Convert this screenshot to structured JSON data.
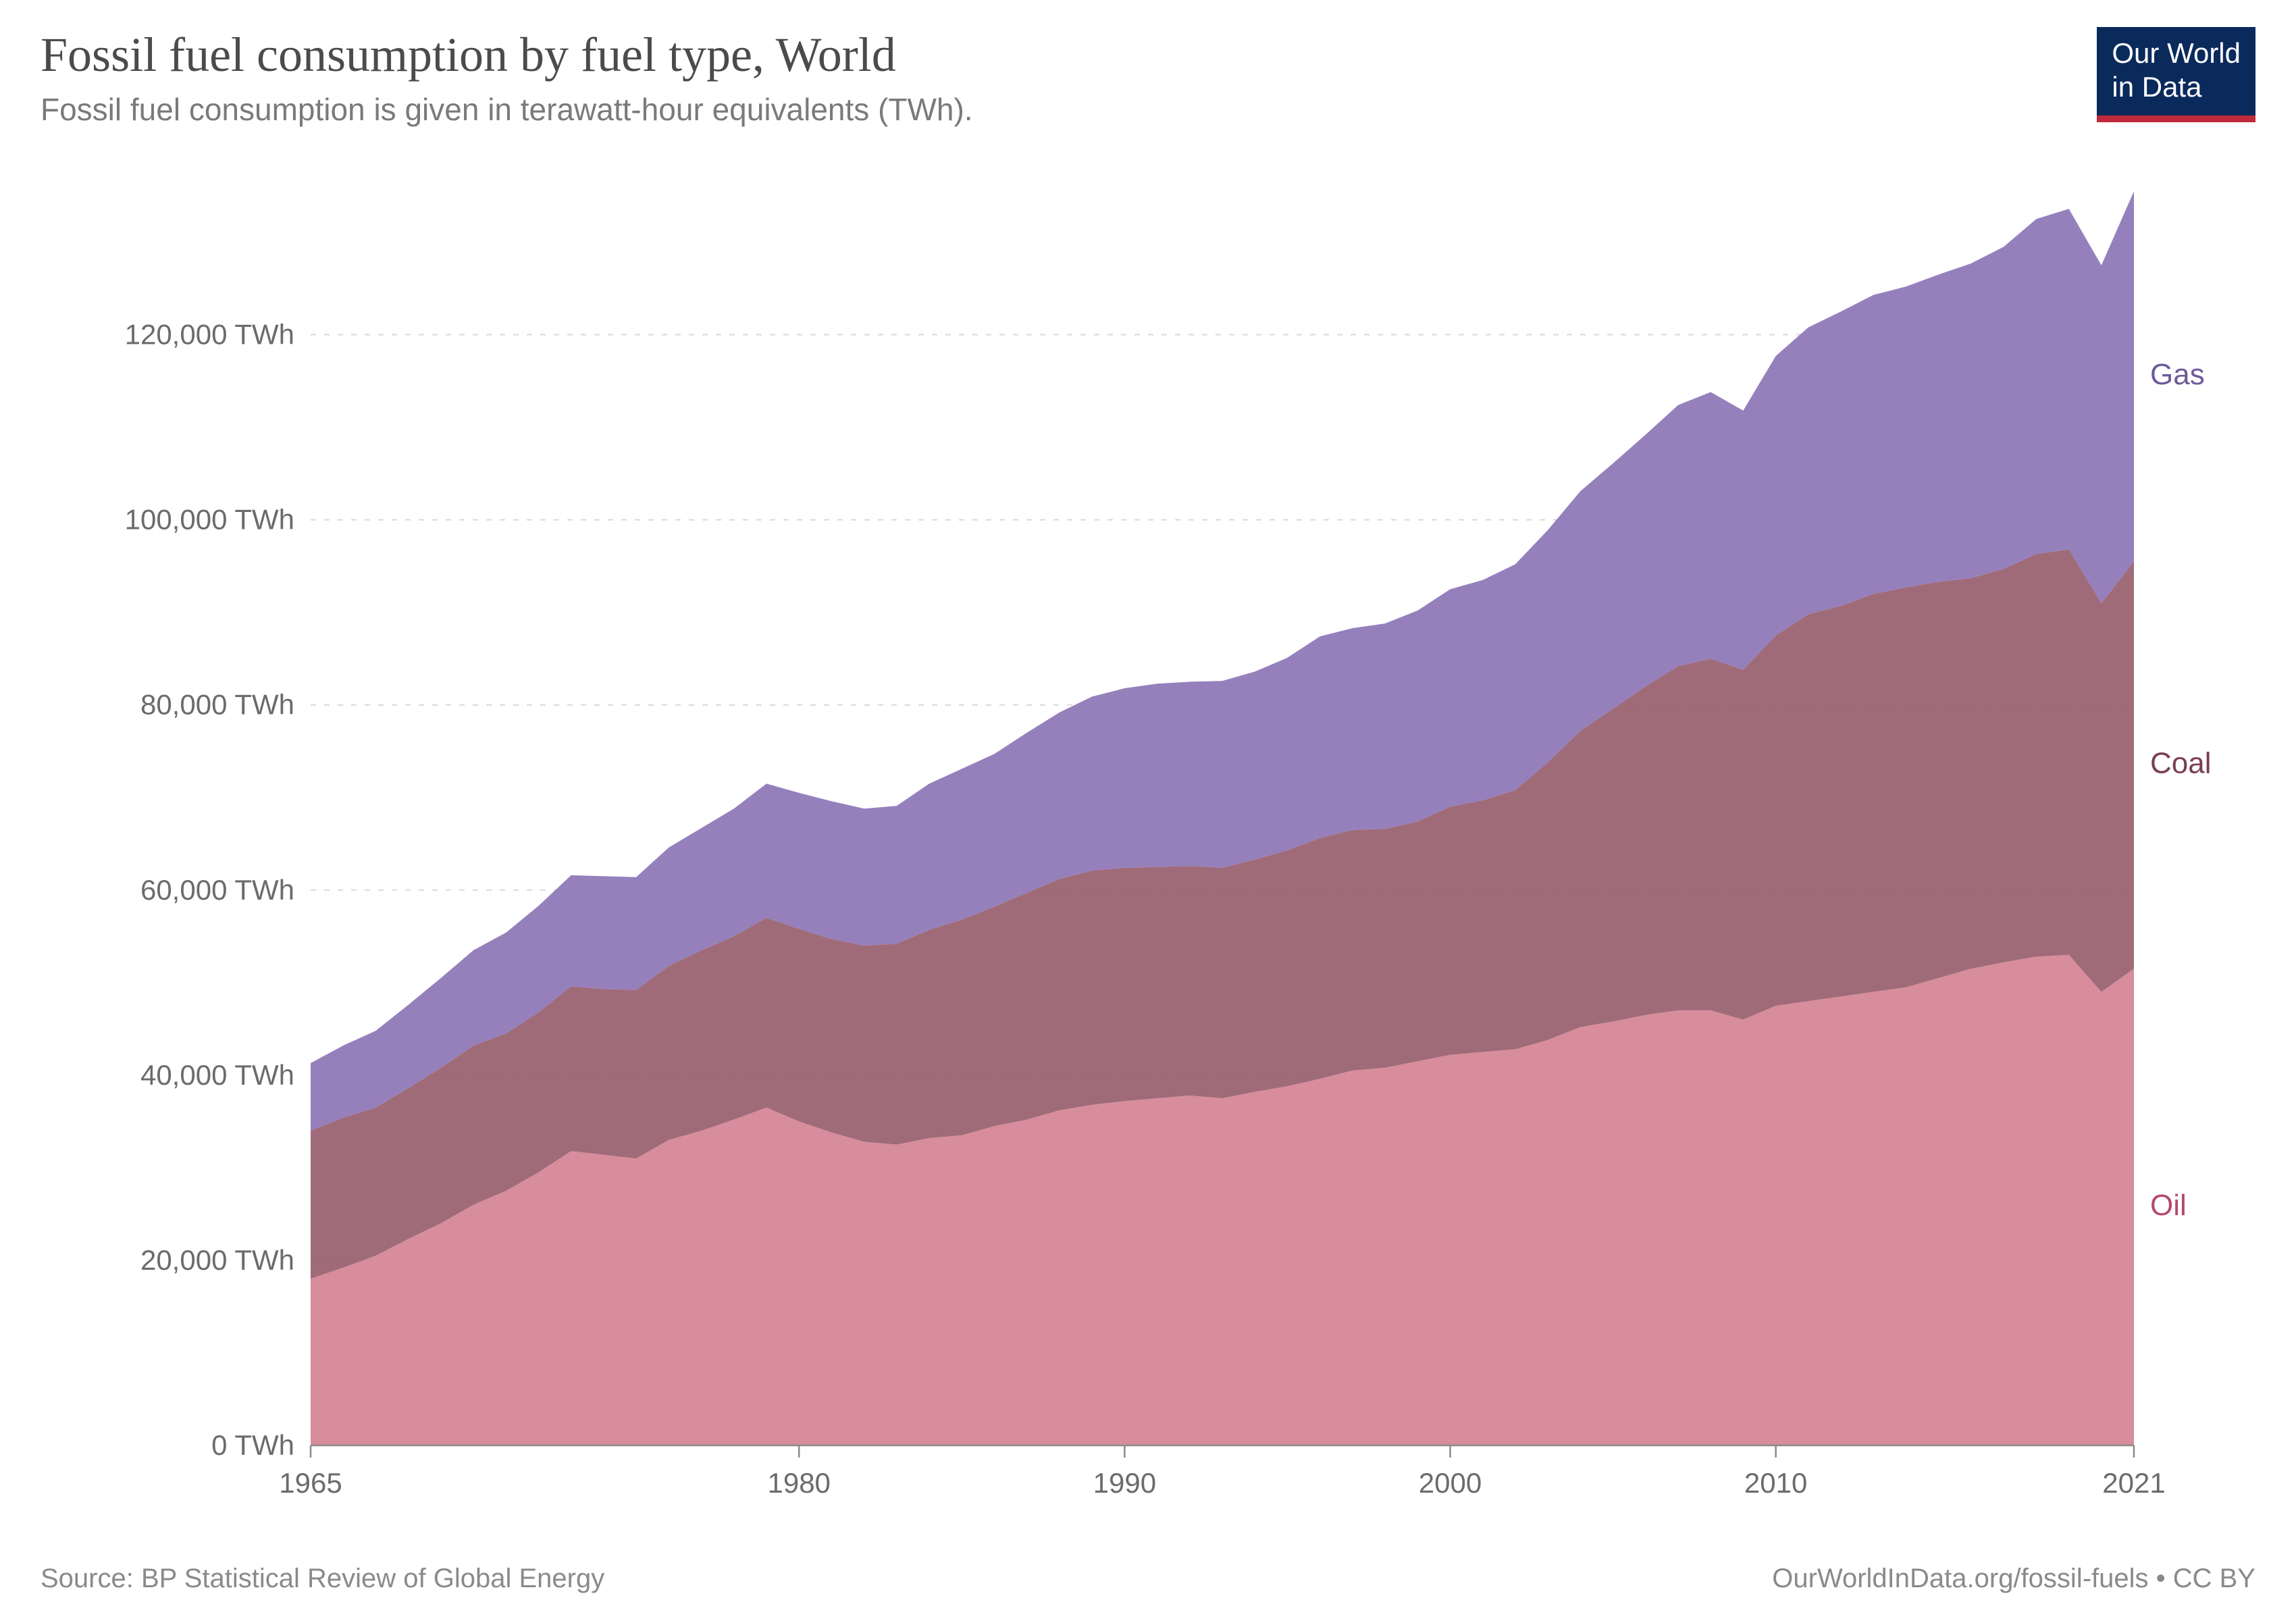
{
  "header": {
    "title": "Fossil fuel consumption by fuel type, World",
    "subtitle": "Fossil fuel consumption is given in terawatt-hour equivalents (TWh)."
  },
  "logo": {
    "line1": "Our World",
    "line2": "in Data",
    "bg_color": "#0a2a5c",
    "accent_color": "#c0283b",
    "text_color": "#ffffff"
  },
  "footer": {
    "source": "Source: BP Statistical Review of Global Energy",
    "attribution": "OurWorldInData.org/fossil-fuels • CC BY"
  },
  "chart": {
    "type": "stacked-area",
    "background_color": "#ffffff",
    "grid_color": "#d9d9d9",
    "axis_color": "#8a8a8a",
    "tick_label_color": "#6b6b6b",
    "tick_fontsize": 42,
    "xlim": [
      1965,
      2021
    ],
    "ylim": [
      0,
      135000
    ],
    "yticks": [
      0,
      20000,
      40000,
      60000,
      80000,
      100000,
      120000
    ],
    "ytick_labels": [
      "0 TWh",
      "20,000 TWh",
      "40,000 TWh",
      "60,000 TWh",
      "80,000 TWh",
      "100,000 TWh",
      "120,000 TWh"
    ],
    "xticks": [
      1965,
      1980,
      1990,
      2000,
      2010,
      2021
    ],
    "xtick_labels": [
      "1965",
      "1980",
      "1990",
      "2000",
      "2010",
      "2021"
    ],
    "years": [
      1965,
      1966,
      1967,
      1968,
      1969,
      1970,
      1971,
      1972,
      1973,
      1974,
      1975,
      1976,
      1977,
      1978,
      1979,
      1980,
      1981,
      1982,
      1983,
      1984,
      1985,
      1986,
      1987,
      1988,
      1989,
      1990,
      1991,
      1992,
      1993,
      1994,
      1995,
      1996,
      1997,
      1998,
      1999,
      2000,
      2001,
      2002,
      2003,
      2004,
      2005,
      2006,
      2007,
      2008,
      2009,
      2010,
      2011,
      2012,
      2013,
      2014,
      2015,
      2016,
      2017,
      2018,
      2019,
      2020,
      2021
    ],
    "series": [
      {
        "name": "Oil",
        "label": "Oil",
        "color": "#d58797",
        "label_color": "#b5486a",
        "values": [
          18000,
          19200,
          20500,
          22300,
          24000,
          26000,
          27500,
          29500,
          31800,
          31400,
          31000,
          33000,
          34000,
          35200,
          36500,
          35000,
          33800,
          32800,
          32500,
          33200,
          33500,
          34500,
          35200,
          36200,
          36800,
          37200,
          37500,
          37800,
          37500,
          38200,
          38800,
          39600,
          40500,
          40800,
          41500,
          42200,
          42500,
          42800,
          43800,
          45200,
          45800,
          46500,
          47000,
          47000,
          46000,
          47500,
          48000,
          48500,
          49000,
          49500,
          50500,
          51500,
          52200,
          52800,
          53000,
          49000,
          51500
        ]
      },
      {
        "name": "Coal",
        "label": "Coal",
        "color": "#9b6371",
        "label_color": "#7a3d52",
        "values": [
          16000,
          16200,
          16000,
          16300,
          16800,
          17200,
          17000,
          17300,
          17800,
          17900,
          18200,
          18800,
          19500,
          19800,
          20500,
          20800,
          20900,
          21200,
          21700,
          22500,
          23300,
          23700,
          24500,
          25000,
          25300,
          25200,
          25000,
          24800,
          24900,
          25100,
          25500,
          26000,
          26000,
          25800,
          25900,
          26800,
          27200,
          28000,
          30000,
          32000,
          33800,
          35500,
          37200,
          38000,
          37800,
          40000,
          41800,
          42200,
          43000,
          43200,
          42800,
          42200,
          42500,
          43500,
          43800,
          42000,
          44000
        ]
      },
      {
        "name": "Gas",
        "label": "Gas",
        "color": "#8f79b8",
        "label_color": "#6d5a99",
        "values": [
          7300,
          7800,
          8300,
          9000,
          9700,
          10300,
          10900,
          11500,
          12000,
          12200,
          12200,
          12800,
          13200,
          13800,
          14500,
          14700,
          14900,
          14800,
          14900,
          15800,
          16300,
          16500,
          17300,
          18000,
          18800,
          19400,
          19800,
          19900,
          20200,
          20300,
          20800,
          21800,
          21800,
          22200,
          22800,
          23500,
          23800,
          24400,
          25100,
          25900,
          26500,
          27200,
          28200,
          28800,
          28000,
          30200,
          31000,
          31800,
          32300,
          32500,
          33200,
          34000,
          34800,
          36200,
          36800,
          36500,
          40000
        ]
      }
    ]
  }
}
